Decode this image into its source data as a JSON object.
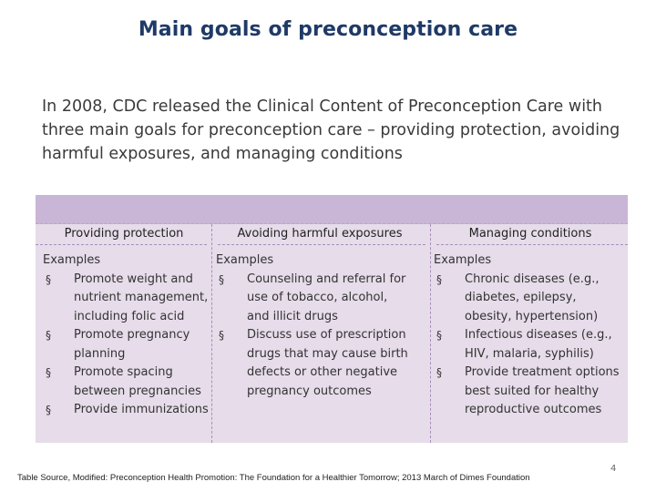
{
  "title": "Main goals of preconception care",
  "intro": "In 2008, CDC released the Clinical Content of Preconception Care with three main goals for preconception care – providing protection, avoiding harmful exposures, and managing conditions",
  "table": {
    "columns": [
      {
        "header": "Providing protection",
        "examples_label": "Examples",
        "items": [
          "Promote weight and nutrient management, including folic acid",
          "Promote pregnancy planning",
          "Promote spacing between pregnancies",
          "Provide immunizations"
        ]
      },
      {
        "header": "Avoiding harmful exposures",
        "examples_label": "Examples",
        "items": [
          "Counseling and referral for use of tobacco, alcohol, and illicit drugs",
          "Discuss use of prescription drugs that may cause birth defects or other negative pregnancy outcomes"
        ]
      },
      {
        "header": "Managing conditions",
        "examples_label": "Examples",
        "items": [
          "Chronic diseases (e.g., diabetes, epilepsy, obesity, hypertension)",
          "Infectious diseases (e.g., HIV, malaria, syphilis)",
          "Provide treatment options best suited for healthy reproductive outcomes"
        ]
      }
    ]
  },
  "source": "Table Source, Modified: Preconception Health Promotion: The Foundation for a Healthier Tomorrow; 2013 March of Dimes Foundation",
  "page_number": "4",
  "colors": {
    "title": "#1f3a66",
    "table_header_band": "#c9b6d6",
    "table_body": "#e6dcea"
  }
}
